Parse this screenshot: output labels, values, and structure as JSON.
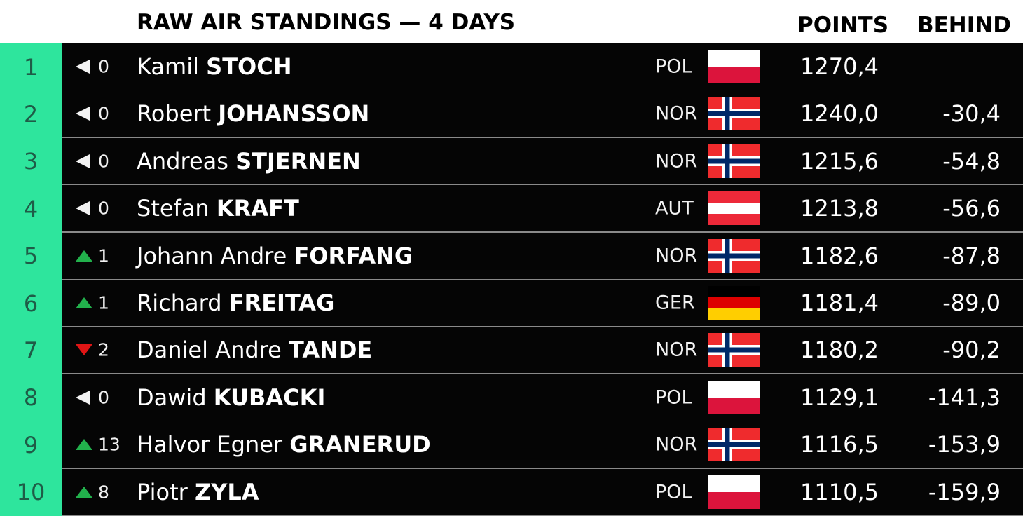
{
  "header": {
    "title": "RAW AIR STANDINGS — 4 DAYS",
    "points_label": "POINTS",
    "behind_label": "BEHIND"
  },
  "colors": {
    "rank_bg": "#2ee59d",
    "row_bg": "#050505",
    "up": "#22b14c",
    "down": "#e01515",
    "same": "#f2f2f2"
  },
  "standings": [
    {
      "rank": "1",
      "trend": "same",
      "change": "0",
      "first": "Kamil",
      "last": "STOCH",
      "nation": "POL",
      "flag": "pol",
      "points": "1270,4",
      "behind": ""
    },
    {
      "rank": "2",
      "trend": "same",
      "change": "0",
      "first": "Robert",
      "last": "JOHANSSON",
      "nation": "NOR",
      "flag": "nor",
      "points": "1240,0",
      "behind": "-30,4"
    },
    {
      "rank": "3",
      "trend": "same",
      "change": "0",
      "first": "Andreas",
      "last": "STJERNEN",
      "nation": "NOR",
      "flag": "nor",
      "points": "1215,6",
      "behind": "-54,8"
    },
    {
      "rank": "4",
      "trend": "same",
      "change": "0",
      "first": "Stefan",
      "last": "KRAFT",
      "nation": "AUT",
      "flag": "aut",
      "points": "1213,8",
      "behind": "-56,6"
    },
    {
      "rank": "5",
      "trend": "up",
      "change": "1",
      "first": "Johann Andre",
      "last": "FORFANG",
      "nation": "NOR",
      "flag": "nor",
      "points": "1182,6",
      "behind": "-87,8"
    },
    {
      "rank": "6",
      "trend": "up",
      "change": "1",
      "first": "Richard",
      "last": "FREITAG",
      "nation": "GER",
      "flag": "ger",
      "points": "1181,4",
      "behind": "-89,0"
    },
    {
      "rank": "7",
      "trend": "down",
      "change": "2",
      "first": "Daniel Andre",
      "last": "TANDE",
      "nation": "NOR",
      "flag": "nor",
      "points": "1180,2",
      "behind": "-90,2"
    },
    {
      "rank": "8",
      "trend": "same",
      "change": "0",
      "first": "Dawid",
      "last": "KUBACKI",
      "nation": "POL",
      "flag": "pol",
      "points": "1129,1",
      "behind": "-141,3"
    },
    {
      "rank": "9",
      "trend": "up",
      "change": "13",
      "first": "Halvor Egner",
      "last": "GRANERUD",
      "nation": "NOR",
      "flag": "nor",
      "points": "1116,5",
      "behind": "-153,9"
    },
    {
      "rank": "10",
      "trend": "up",
      "change": "8",
      "first": "Piotr",
      "last": "ZYLA",
      "nation": "POL",
      "flag": "pol",
      "points": "1110,5",
      "behind": "-159,9"
    }
  ]
}
